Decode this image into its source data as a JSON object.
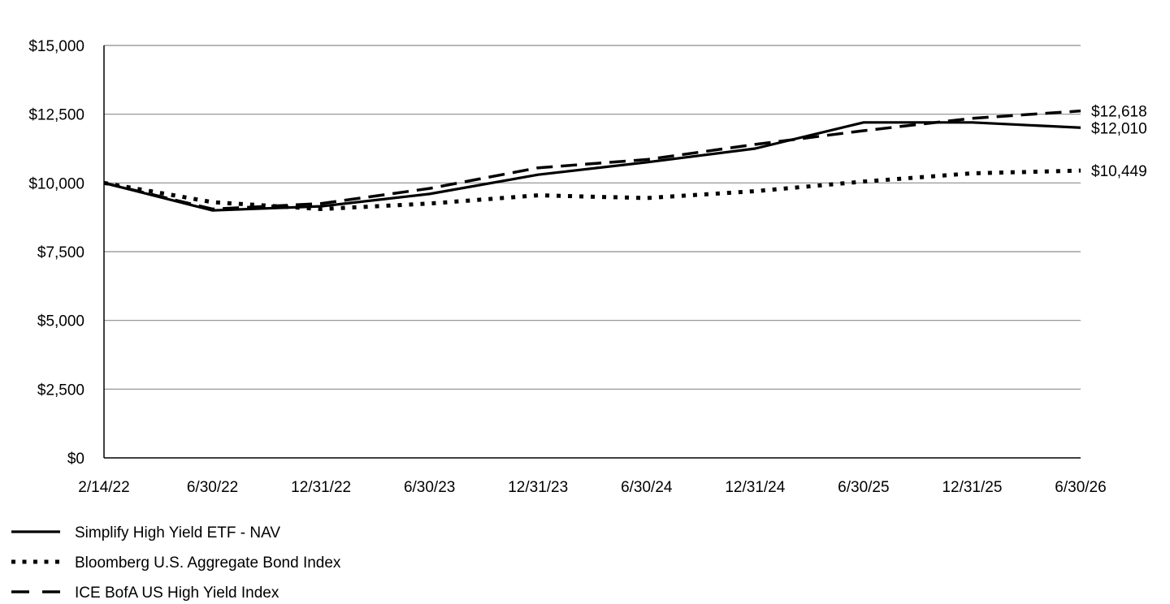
{
  "chart_data": {
    "type": "line",
    "title": "",
    "xlabel": "",
    "ylabel": "",
    "categories": [
      "2/14/22",
      "6/30/22",
      "12/31/22",
      "6/30/23",
      "12/31/23",
      "6/30/24",
      "12/31/24",
      "6/30/25",
      "12/31/25",
      "6/30/26"
    ],
    "ylim": [
      0,
      15000
    ],
    "yticks": [
      0,
      2500,
      5000,
      7500,
      10000,
      12500,
      15000
    ],
    "ytick_labels": [
      "$0",
      "$2,500",
      "$5,000",
      "$7,500",
      "$10,000",
      "$12,500",
      "$15,000"
    ],
    "grid": "horizontal",
    "legend_position": "bottom-left",
    "series": [
      {
        "name": "Simplify High Yield ETF - NAV",
        "style": "solid",
        "color": "#000000",
        "values": [
          10000,
          9000,
          9150,
          9600,
          10300,
          10750,
          11250,
          12200,
          12200,
          12010
        ],
        "end_label": "$12,010"
      },
      {
        "name": "Bloomberg U.S. Aggregate Bond Index",
        "style": "dotted",
        "color": "#000000",
        "values": [
          10000,
          9300,
          9050,
          9250,
          9550,
          9450,
          9700,
          10050,
          10350,
          10449
        ],
        "end_label": "$10,449"
      },
      {
        "name": "ICE BofA US High Yield Index",
        "style": "dashed",
        "color": "#000000",
        "values": [
          10000,
          9050,
          9250,
          9800,
          10550,
          10850,
          11400,
          11900,
          12350,
          12618
        ],
        "end_label": "$12,618"
      }
    ]
  }
}
